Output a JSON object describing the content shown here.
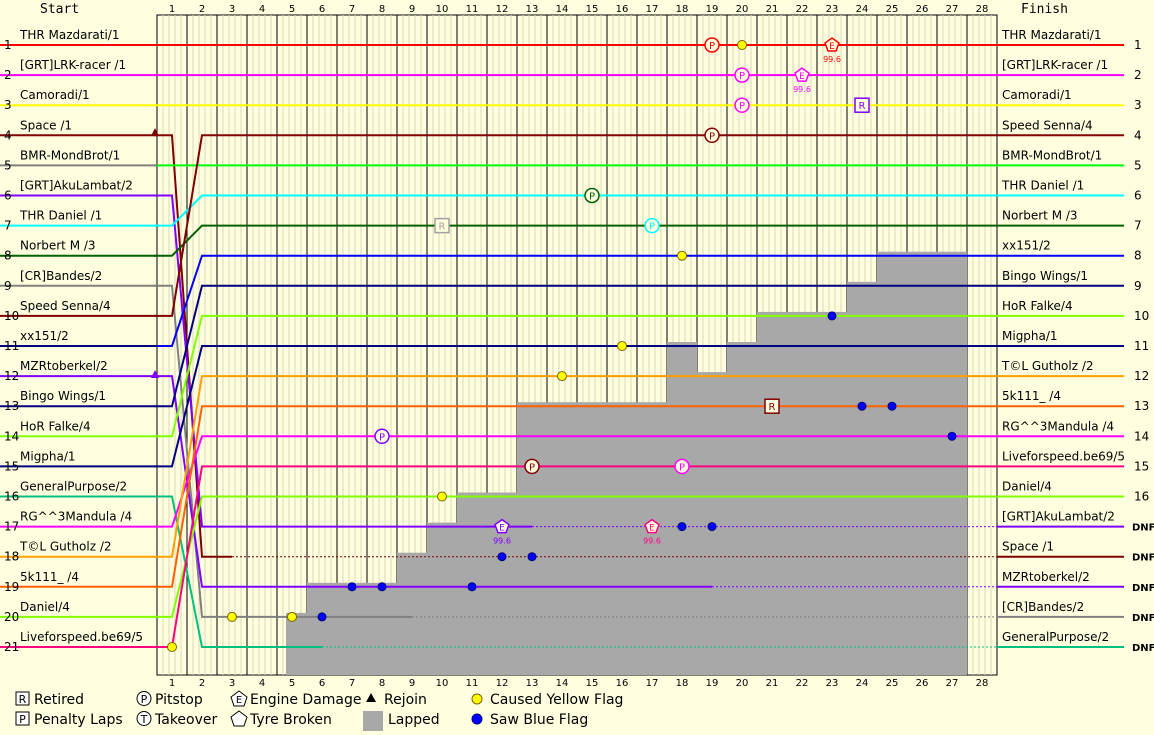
{
  "chart_data": {
    "type": "line",
    "header_left": "Start",
    "header_right": "Finish",
    "laps": [
      "1",
      "2",
      "3",
      "4",
      "5",
      "6",
      "7",
      "8",
      "9",
      "10",
      "11",
      "12",
      "13",
      "14",
      "15",
      "16",
      "17",
      "18",
      "19",
      "20",
      "21",
      "22",
      "23",
      "24",
      "25",
      "26",
      "27",
      "28"
    ],
    "start_positions": [
      "1",
      "2",
      "3",
      "4",
      "5",
      "6",
      "7",
      "8",
      "9",
      "10",
      "11",
      "12",
      "13",
      "14",
      "15",
      "16",
      "17",
      "18",
      "19",
      "20",
      "21"
    ],
    "finish_positions": [
      "1",
      "2",
      "3",
      "4",
      "5",
      "6",
      "7",
      "8",
      "9",
      "10",
      "11",
      "12",
      "13",
      "14",
      "15",
      "16",
      "DNF",
      "DNF",
      "DNF",
      "DNF",
      "DNF"
    ],
    "start_grid": [
      {
        "name": "THR Mazdarati/1",
        "color": "#ff0000"
      },
      {
        "name": "[GRT]LRK-racer /1",
        "color": "#ff00ff"
      },
      {
        "name": "Camoradi/1",
        "color": "#ffff00"
      },
      {
        "name": "Space /1",
        "color": "#800000"
      },
      {
        "name": "BMR-MondBrot/1",
        "color": "#808080"
      },
      {
        "name": "[GRT]AkuLambat/2",
        "color": "#8000ff"
      },
      {
        "name": "THR Daniel /1",
        "color": "#00ffff"
      },
      {
        "name": "Norbert M /3",
        "color": "#006000"
      },
      {
        "name": "[CR]Bandes/2",
        "color": "#808080"
      },
      {
        "name": "Speed Senna/4",
        "color": "#800000"
      },
      {
        "name": "xx151/2",
        "color": "#000080"
      },
      {
        "name": "MZRtoberkel/2",
        "color": "#8000ff"
      },
      {
        "name": "Bingo Wings/1",
        "color": "#000080"
      },
      {
        "name": "HoR Falke/4",
        "color": "#80ff00"
      },
      {
        "name": "Migpha/1",
        "color": "#000080"
      },
      {
        "name": "GeneralPurpose/2",
        "color": "#00c080"
      },
      {
        "name": "RG^^3Mandula /4",
        "color": "#ff00ff"
      },
      {
        "name": "T©L Gutholz /2",
        "color": "#ffa000"
      },
      {
        "name": "5k111_ /4",
        "color": "#ff6000"
      },
      {
        "name": "Daniel/4",
        "color": "#80ff00"
      },
      {
        "name": "Liveforspeed.be69/5",
        "color": "#ff0080"
      }
    ],
    "finish_order": [
      {
        "name": "THR Mazdarati/1",
        "color": "#ff0000"
      },
      {
        "name": "[GRT]LRK-racer /1",
        "color": "#ff00ff"
      },
      {
        "name": "Camoradi/1",
        "color": "#ffff00"
      },
      {
        "name": "Speed Senna/4",
        "color": "#800000"
      },
      {
        "name": "BMR-MondBrot/1",
        "color": "#00ff00"
      },
      {
        "name": "THR Daniel /1",
        "color": "#00ffff"
      },
      {
        "name": "Norbert M /3",
        "color": "#006000"
      },
      {
        "name": "xx151/2",
        "color": "#0000ff"
      },
      {
        "name": "Bingo Wings/1",
        "color": "#000080"
      },
      {
        "name": "HoR Falke/4",
        "color": "#80ff00"
      },
      {
        "name": "Migpha/1",
        "color": "#000080"
      },
      {
        "name": "T©L Gutholz /2",
        "color": "#ffa000"
      },
      {
        "name": "5k111_ /4",
        "color": "#ff6000"
      },
      {
        "name": "RG^^3Mandula /4",
        "color": "#ff00ff"
      },
      {
        "name": "Liveforspeed.be69/5",
        "color": "#ff0080"
      },
      {
        "name": "Daniel/4",
        "color": "#80ff00"
      },
      {
        "name": "[GRT]AkuLambat/2",
        "color": "#8000ff"
      },
      {
        "name": "Space /1",
        "color": "#800000"
      },
      {
        "name": "MZRtoberkel/2",
        "color": "#8000ff"
      },
      {
        "name": "[CR]Bandes/2",
        "color": "#808080"
      },
      {
        "name": "GeneralPurpose/2",
        "color": "#00c080"
      }
    ],
    "lapped_area_positions_by_lap": [
      null,
      null,
      null,
      null,
      20,
      19,
      19,
      19,
      18,
      17,
      16,
      16,
      13,
      13,
      13,
      13,
      13,
      11,
      12,
      11,
      10,
      10,
      10,
      9,
      8,
      8,
      8,
      null
    ],
    "legend": [
      {
        "symbol": "R",
        "shape": "square",
        "label": "Retired"
      },
      {
        "symbol": "P",
        "shape": "square",
        "label": "Penalty Laps"
      },
      {
        "symbol": "P",
        "shape": "circle",
        "label": "Pitstop"
      },
      {
        "symbol": "T",
        "shape": "circle",
        "label": "Takeover"
      },
      {
        "symbol": "E",
        "shape": "pentagon",
        "label": "Engine Damage"
      },
      {
        "symbol": "",
        "shape": "pentagon",
        "label": "Tyre Broken"
      },
      {
        "symbol": "",
        "shape": "triangle",
        "label": "Rejoin"
      },
      {
        "symbol": "",
        "shape": "gray-box",
        "label": "Lapped"
      },
      {
        "symbol": "",
        "shape": "yellow-dot",
        "label": "Caused Yellow Flag"
      },
      {
        "symbol": "",
        "shape": "blue-dot",
        "label": "Saw Blue Flag"
      }
    ],
    "annotations": [
      "99.6",
      "99.6",
      "99.6",
      "99.6"
    ]
  }
}
